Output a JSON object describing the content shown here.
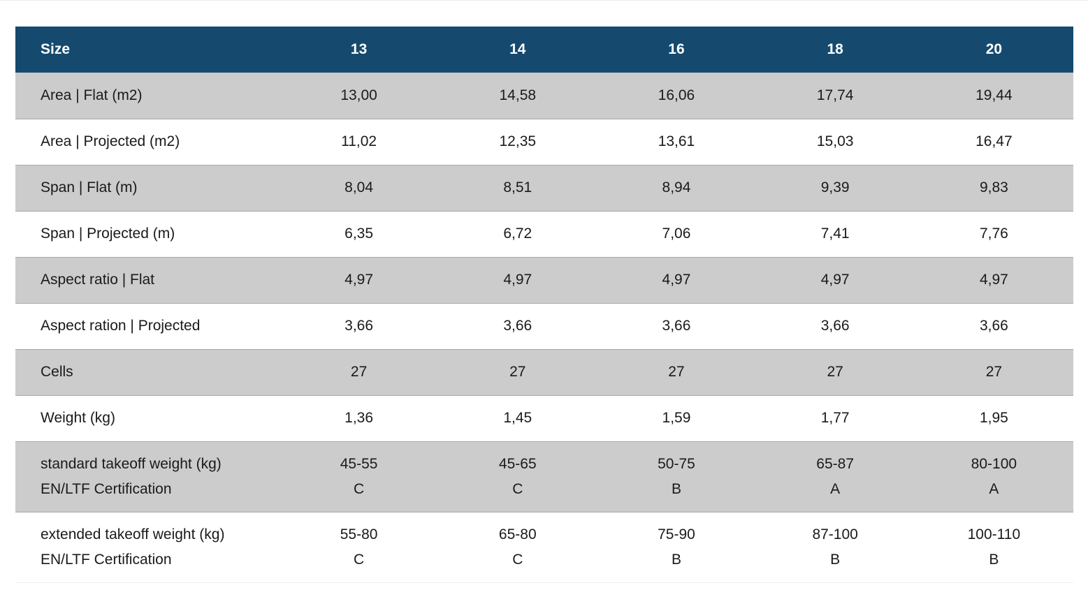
{
  "table": {
    "header": {
      "label": "Size",
      "sizes": [
        "13",
        "14",
        "16",
        "18",
        "20"
      ]
    },
    "rows": [
      {
        "label": "Area | Flat (m2)",
        "values": [
          "13,00",
          "14,58",
          "16,06",
          "17,74",
          "19,44"
        ]
      },
      {
        "label": "Area | Projected (m2)",
        "values": [
          "11,02",
          "12,35",
          "13,61",
          "15,03",
          "16,47"
        ]
      },
      {
        "label": "Span | Flat (m)",
        "values": [
          "8,04",
          "8,51",
          "8,94",
          "9,39",
          "9,83"
        ]
      },
      {
        "label": "Span | Projected (m)",
        "values": [
          "6,35",
          "6,72",
          "7,06",
          "7,41",
          "7,76"
        ]
      },
      {
        "label": "Aspect ratio | Flat",
        "values": [
          "4,97",
          "4,97",
          "4,97",
          "4,97",
          "4,97"
        ]
      },
      {
        "label": "Aspect ration | Projected",
        "values": [
          "3,66",
          "3,66",
          "3,66",
          "3,66",
          "3,66"
        ]
      },
      {
        "label": "Cells",
        "values": [
          "27",
          "27",
          "27",
          "27",
          "27"
        ]
      },
      {
        "label": "Weight (kg)",
        "values": [
          "1,36",
          "1,45",
          "1,59",
          "1,77",
          "1,95"
        ]
      }
    ],
    "standard": {
      "weight_label": "standard takeoff weight (kg)",
      "cert_label": "EN/LTF Certification",
      "weights": [
        "45-55",
        "45-65",
        "50-75",
        "65-87",
        "80-100"
      ],
      "certs": [
        "C",
        "C",
        "B",
        "A",
        "A"
      ]
    },
    "extended": {
      "weight_label": "extended takeoff weight (kg)",
      "cert_label": "EN/LTF Certification",
      "weights": [
        "55-80",
        "65-80",
        "75-90",
        "87-100",
        "100-110"
      ],
      "certs": [
        "C",
        "C",
        "B",
        "B",
        "B"
      ]
    }
  },
  "colors": {
    "header_bg": "#154a6e",
    "header_text": "#ffffff",
    "row_shade": "#cccccc",
    "row_plain": "#ffffff"
  }
}
